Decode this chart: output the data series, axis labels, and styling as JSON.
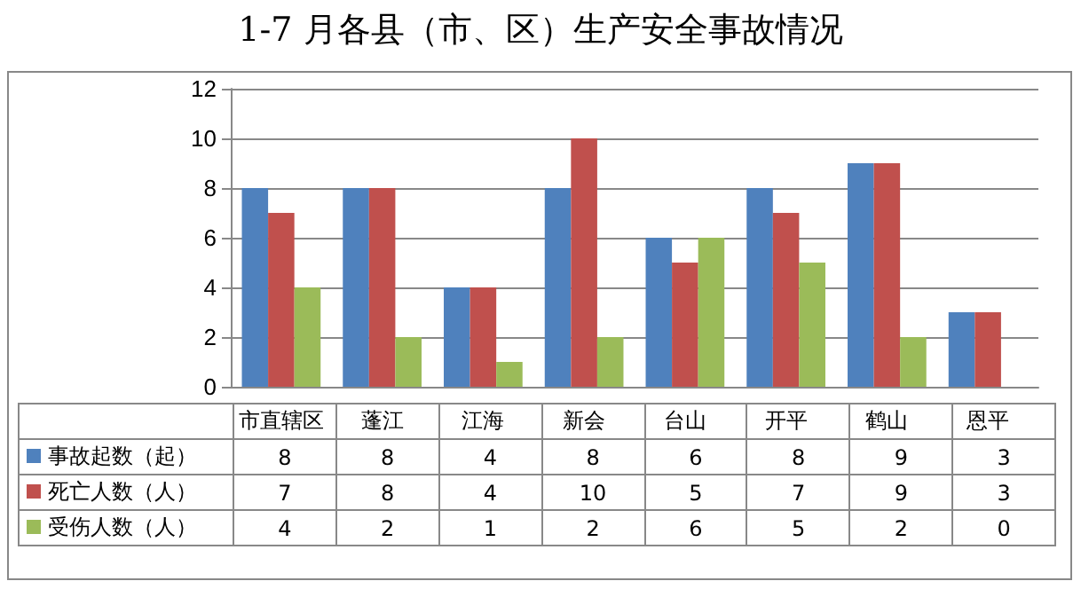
{
  "chart_data": {
    "type": "bar",
    "title": "1-7 月各县（市、区）生产安全事故情况",
    "categories": [
      "市直辖区",
      "蓬江",
      "江海",
      "新会",
      "台山",
      "开平",
      "鹤山",
      "恩平"
    ],
    "series": [
      {
        "name": "事故起数（起）",
        "color": "#4f81bd",
        "values": [
          8,
          8,
          4,
          8,
          6,
          8,
          9,
          3
        ]
      },
      {
        "name": "死亡人数（人）",
        "color": "#c0504d",
        "values": [
          7,
          8,
          4,
          10,
          5,
          7,
          9,
          3
        ]
      },
      {
        "name": "受伤人数（人）",
        "color": "#9bbb59",
        "values": [
          4,
          2,
          1,
          2,
          6,
          5,
          2,
          0
        ]
      }
    ],
    "ylim": [
      0,
      12
    ],
    "yticks": [
      0,
      2,
      4,
      6,
      8,
      10,
      12
    ],
    "grid": "y",
    "legend": "bottom",
    "data_labels": true
  }
}
